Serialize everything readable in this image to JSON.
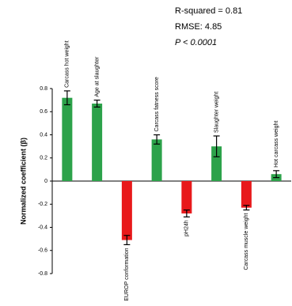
{
  "chart_data": {
    "type": "bar",
    "ylabel": "Normalized coefficient (β)",
    "annotations": [
      "R-squared = 0.81",
      "RMSE: 4.85",
      "P < 0.0001"
    ],
    "categories": [
      "Carcass hot weight",
      "Age at slaughter",
      "EUROP conformation",
      "Carcass fatness score",
      "pH24h",
      "Slaughter weight",
      "Carcass muscle weight",
      "Hot carcass weight"
    ],
    "values": [
      0.72,
      0.67,
      -0.51,
      0.36,
      -0.28,
      0.3,
      -0.23,
      0.06
    ],
    "errors": [
      0.06,
      0.03,
      0.04,
      0.04,
      0.03,
      0.09,
      0.02,
      0.03
    ],
    "colors": [
      "#2ca24a",
      "#2ca24a",
      "#e8191b",
      "#2ca24a",
      "#e8191b",
      "#2ca24a",
      "#e8191b",
      "#2ca24a"
    ],
    "ylim": [
      -0.8,
      0.8
    ],
    "yticks": [
      -0.8,
      -0.6,
      -0.4,
      -0.2,
      0,
      0.2,
      0.4,
      0.6,
      0.8
    ],
    "grid": false
  }
}
